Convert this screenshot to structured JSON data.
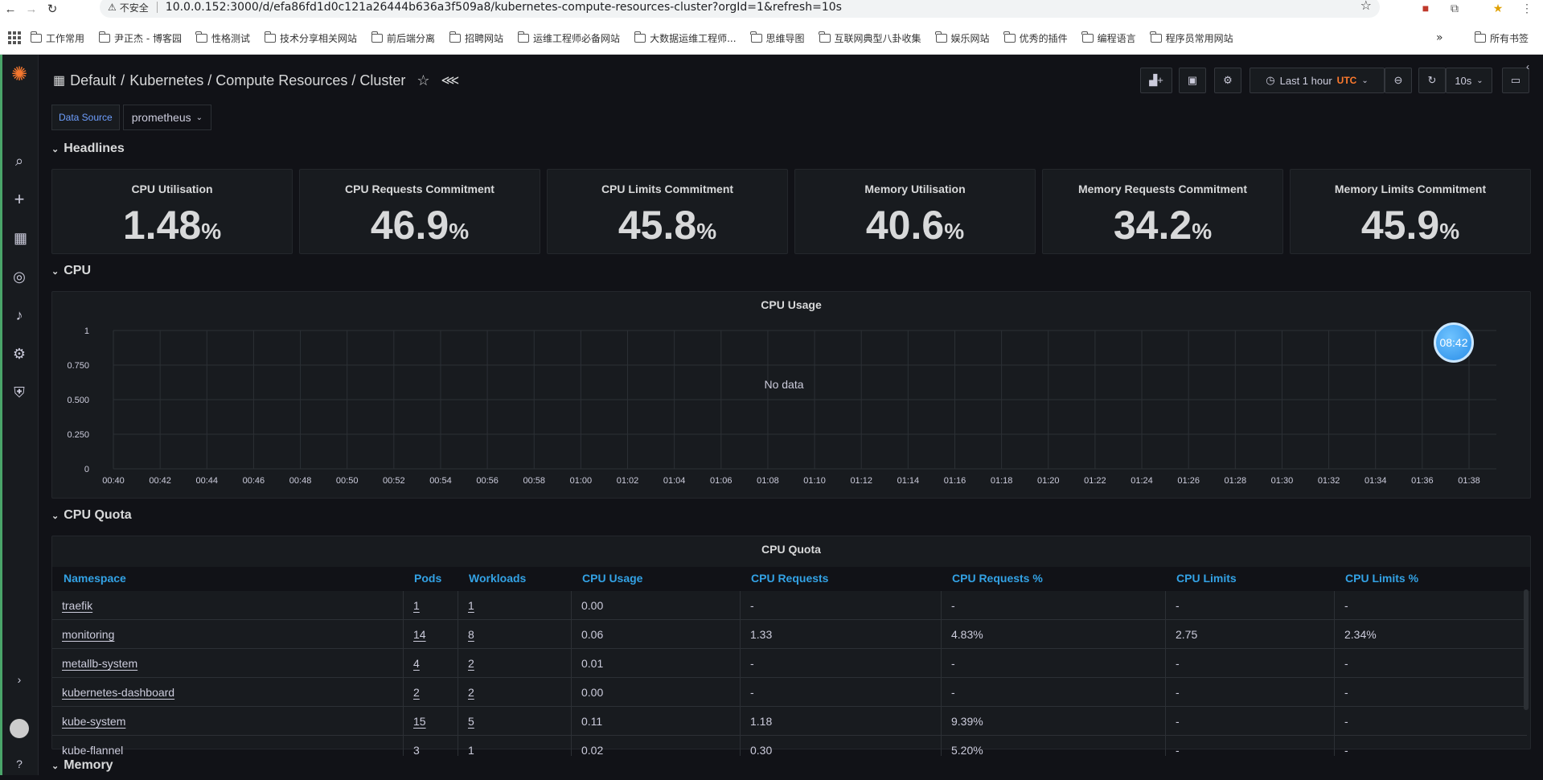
{
  "browser": {
    "security_label": "不安全",
    "url": "10.0.0.152:3000/d/efa86fd1d0c121a26444b636a3f509a8/kubernetes-compute-resources-cluster?orgId=1&refresh=10s",
    "bookmarks": [
      "工作常用",
      "尹正杰 - 博客园",
      "性格测试",
      "技术分享相关网站",
      "前后端分离",
      "招聘网站",
      "运维工程师必备网站",
      "大数据运维工程师...",
      "思维导图",
      "互联网典型八卦收集",
      "娱乐网站",
      "优秀的插件",
      "编程语言",
      "程序员常用网站"
    ],
    "all_bookmarks": "所有书签",
    "more": "»"
  },
  "breadcrumb": {
    "folder": "Default",
    "separator": "/",
    "title": "Kubernetes / Compute Resources / Cluster"
  },
  "toolbar": {
    "time_range": "Last 1 hour",
    "timezone": "UTC",
    "refresh": "10s"
  },
  "variables": {
    "label": "Data Source",
    "value": "prometheus"
  },
  "rows": {
    "headlines": "Headlines",
    "cpu": "CPU",
    "cpu_quota": "CPU Quota",
    "memory": "Memory"
  },
  "stats": [
    {
      "title": "CPU Utilisation",
      "value": "1.48",
      "unit": "%"
    },
    {
      "title": "CPU Requests Commitment",
      "value": "46.9",
      "unit": "%"
    },
    {
      "title": "CPU Limits Commitment",
      "value": "45.8",
      "unit": "%"
    },
    {
      "title": "Memory Utilisation",
      "value": "40.6",
      "unit": "%"
    },
    {
      "title": "Memory Requests Commitment",
      "value": "34.2",
      "unit": "%"
    },
    {
      "title": "Memory Limits Commitment",
      "value": "45.9",
      "unit": "%"
    }
  ],
  "cpu_usage": {
    "title": "CPU Usage",
    "no_data": "No data"
  },
  "chart_data": {
    "type": "line",
    "title": "CPU Usage",
    "y_ticks": [
      "0",
      "0.250",
      "0.500",
      "0.750",
      "1"
    ],
    "ylim": [
      0,
      1
    ],
    "x_ticks": [
      "00:40",
      "00:42",
      "00:44",
      "00:46",
      "00:48",
      "00:50",
      "00:52",
      "00:54",
      "00:56",
      "00:58",
      "01:00",
      "01:02",
      "01:04",
      "01:06",
      "01:08",
      "01:10",
      "01:12",
      "01:14",
      "01:16",
      "01:18",
      "01:20",
      "01:22",
      "01:24",
      "01:26",
      "01:28",
      "01:30",
      "01:32",
      "01:34",
      "01:36",
      "01:38"
    ],
    "series": [],
    "annotation": "No data"
  },
  "cpu_quota": {
    "title": "CPU Quota",
    "columns": [
      "Namespace",
      "Pods",
      "Workloads",
      "CPU Usage",
      "CPU Requests",
      "CPU Requests %",
      "CPU Limits",
      "CPU Limits %"
    ],
    "rows": [
      [
        "traefik",
        "1",
        "1",
        "0.00",
        "-",
        "-",
        "-",
        "-"
      ],
      [
        "monitoring",
        "14",
        "8",
        "0.06",
        "1.33",
        "4.83%",
        "2.75",
        "2.34%"
      ],
      [
        "metallb-system",
        "4",
        "2",
        "0.01",
        "-",
        "-",
        "-",
        "-"
      ],
      [
        "kubernetes-dashboard",
        "2",
        "2",
        "0.00",
        "-",
        "-",
        "-",
        "-"
      ],
      [
        "kube-system",
        "15",
        "5",
        "0.11",
        "1.18",
        "9.39%",
        "-",
        "-"
      ],
      [
        "kube-flannel",
        "3",
        "1",
        "0.02",
        "0.30",
        "5.20%",
        "-",
        "-"
      ]
    ]
  },
  "timer": "08:42"
}
